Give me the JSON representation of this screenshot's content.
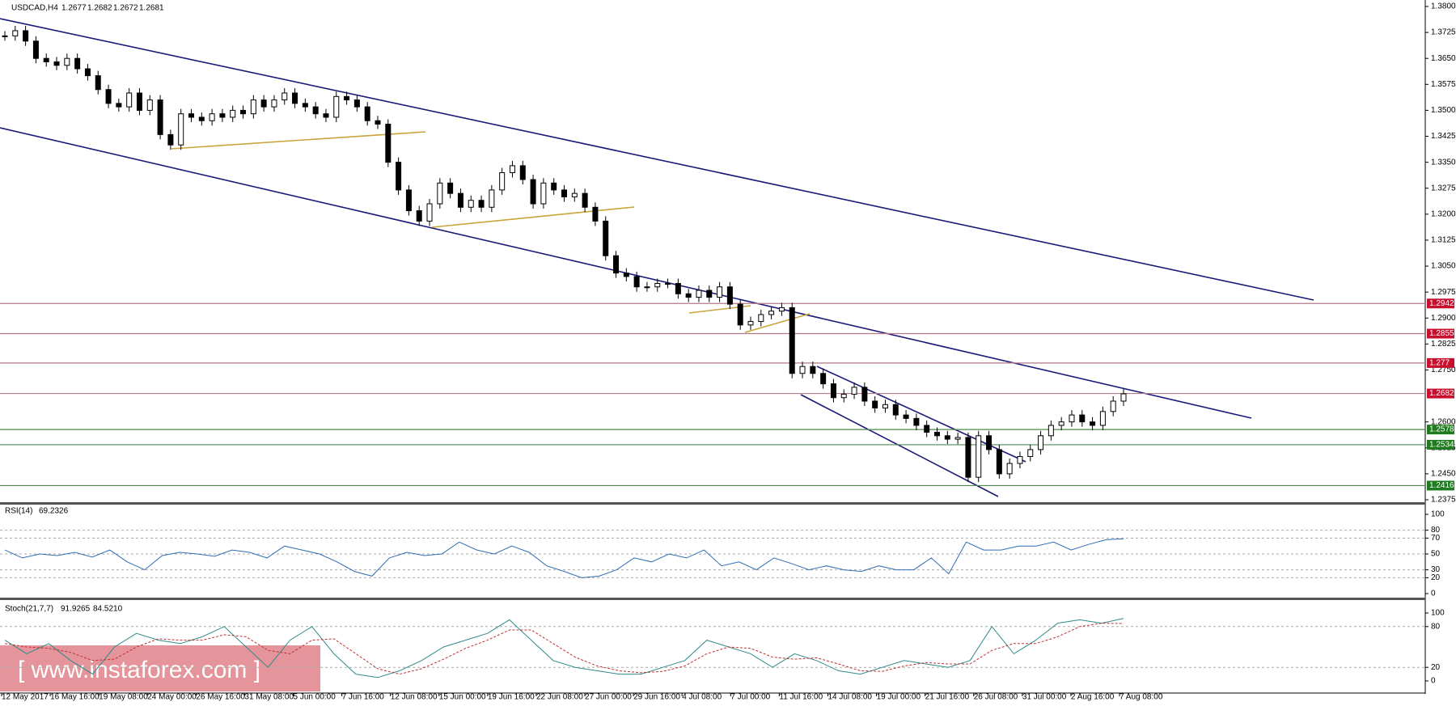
{
  "chart_data": [
    {
      "type": "candlestick",
      "symbol": "USDCAD,H4",
      "ohlc": [
        1.2677,
        1.2682,
        1.2672,
        1.2681
      ],
      "values": [
        1.3715,
        1.373,
        1.37,
        1.365,
        1.364,
        1.363,
        1.365,
        1.362,
        1.36,
        1.356,
        1.352,
        1.351,
        1.355,
        1.35,
        1.353,
        1.343,
        1.34,
        1.349,
        1.348,
        1.347,
        1.349,
        1.348,
        1.35,
        1.349,
        1.353,
        1.351,
        1.353,
        1.355,
        1.352,
        1.351,
        1.349,
        1.348,
        1.354,
        1.353,
        1.351,
        1.347,
        1.346,
        1.335,
        1.327,
        1.321,
        1.318,
        1.323,
        1.329,
        1.326,
        1.322,
        1.324,
        1.322,
        1.327,
        1.332,
        1.334,
        1.33,
        1.323,
        1.329,
        1.327,
        1.325,
        1.326,
        1.322,
        1.318,
        1.308,
        1.303,
        1.302,
        1.299,
        1.299,
        1.3,
        1.3,
        1.297,
        1.296,
        1.298,
        1.296,
        1.299,
        1.294,
        1.288,
        1.289,
        1.291,
        1.292,
        1.293,
        1.274,
        1.276,
        1.274,
        1.271,
        1.267,
        1.268,
        1.27,
        1.266,
        1.264,
        1.265,
        1.262,
        1.261,
        1.259,
        1.257,
        1.256,
        1.255,
        1.2555,
        1.244,
        1.256,
        1.252,
        1.245,
        1.248,
        1.25,
        1.252,
        1.256,
        1.259,
        1.26,
        1.262,
        1.26,
        1.259,
        1.263,
        1.266,
        1.2681
      ],
      "ylim": [
        1.2375,
        1.38
      ],
      "yticks": [
        {
          "value": 1.38,
          "label": "1.3800"
        },
        {
          "value": 1.3725,
          "label": "1.3725"
        },
        {
          "value": 1.365,
          "label": "1.3650"
        },
        {
          "value": 1.3575,
          "label": "1.3575"
        },
        {
          "value": 1.35,
          "label": "1.3500"
        },
        {
          "value": 1.3425,
          "label": "1.3425"
        },
        {
          "value": 1.335,
          "label": "1.3350"
        },
        {
          "value": 1.3275,
          "label": "1.3275"
        },
        {
          "value": 1.32,
          "label": "1.3200"
        },
        {
          "value": 1.3125,
          "label": "1.3125"
        },
        {
          "value": 1.305,
          "label": "1.3050"
        },
        {
          "value": 1.2975,
          "label": "1.2975"
        },
        {
          "value": 1.29,
          "label": "1.2900"
        },
        {
          "value": 1.2825,
          "label": "1.2825"
        },
        {
          "value": 1.275,
          "label": "1.2750"
        },
        {
          "value": 1.26,
          "label": "1.2600"
        },
        {
          "value": 1.2525,
          "label": "1.2525"
        },
        {
          "value": 1.245,
          "label": "1.2450"
        },
        {
          "value": 1.2375,
          "label": "1.2375"
        }
      ],
      "levels": [
        {
          "value": 1.2942,
          "color": "#c8102e",
          "line": "#b07a88"
        },
        {
          "value": 1.2855,
          "color": "#c8102e",
          "line": "#b07a88"
        },
        {
          "value": 1.277,
          "color": "#c8102e",
          "line": "#b07a88"
        },
        {
          "value": 1.2682,
          "color": "#c8102e",
          "line": "#b07a88"
        },
        {
          "value": 1.2578,
          "color": "#1e7b1e",
          "line": "#4f8a4f"
        },
        {
          "value": 1.2534,
          "color": "#1e7b1e",
          "line": "#4f8a4f"
        },
        {
          "value": 1.2416,
          "color": "#1e7b1e",
          "line": "#4f8a4f"
        }
      ],
      "xlabels": [
        "12 May 2017",
        "16 May 16:00",
        "19 May 08:00",
        "24 May 00:00",
        "26 May 16:00",
        "31 May 08:00",
        "5 Jun 00:00",
        "7 Jun 16:00",
        "12 Jun 08:00",
        "15 Jun 00:00",
        "19 Jun 16:00",
        "22 Jun 08:00",
        "27 Jun 00:00",
        "29 Jun 16:00",
        "4 Jul 08:00",
        "7 Jul 00:00",
        "11 Jul 16:00",
        "14 Jul 08:00",
        "19 Jul 00:00",
        "21 Jul 16:00",
        "26 Jul 08:00",
        "31 Jul 00:00",
        "2 Aug 16:00",
        "7 Aug 08:00"
      ],
      "watermark": "[ www.instaforex.com ]"
    },
    {
      "type": "line",
      "title": "RSI(14)",
      "last": 69.2326,
      "ylim": [
        0,
        100
      ],
      "yticks": [
        100,
        80,
        70,
        50,
        30,
        20,
        0
      ],
      "series": [
        {
          "color": "#2f6db5",
          "values": [
            55,
            45,
            50,
            48,
            52,
            46,
            55,
            40,
            30,
            48,
            52,
            50,
            47,
            55,
            52,
            45,
            60,
            55,
            50,
            40,
            28,
            22,
            45,
            52,
            48,
            50,
            65,
            55,
            50,
            60,
            52,
            35,
            28,
            20,
            22,
            30,
            45,
            40,
            50,
            45,
            55,
            35,
            40,
            30,
            45,
            38,
            30,
            35,
            30,
            28,
            35,
            30,
            30,
            45,
            25,
            65,
            55,
            55,
            60,
            60,
            65,
            55,
            62,
            68,
            69.2326
          ]
        }
      ]
    },
    {
      "type": "line",
      "title": "Stoch(21,7,7)",
      "last": [
        91.9265,
        {
          "value": 84.521,
          "label": "84.5210"
        }
      ],
      "ylim": [
        0,
        100
      ],
      "yticks": [
        100,
        80,
        20,
        0
      ],
      "series": [
        {
          "color": "#2f8a8a",
          "dash": false,
          "values": [
            60,
            40,
            55,
            30,
            10,
            50,
            70,
            60,
            55,
            65,
            80,
            50,
            20,
            60,
            80,
            40,
            10,
            5,
            15,
            30,
            50,
            60,
            70,
            90,
            60,
            30,
            20,
            15,
            10,
            10,
            20,
            30,
            60,
            50,
            40,
            20,
            40,
            30,
            15,
            10,
            20,
            30,
            25,
            20,
            30,
            80,
            40,
            60,
            85,
            90,
            85,
            91.9265
          ]
        },
        {
          "color": "#c03030",
          "dash": true,
          "values": [
            55,
            50,
            48,
            42,
            30,
            32,
            50,
            62,
            60,
            60,
            68,
            65,
            45,
            40,
            60,
            62,
            40,
            18,
            10,
            18,
            32,
            48,
            60,
            75,
            75,
            55,
            35,
            22,
            15,
            12,
            14,
            22,
            40,
            50,
            48,
            35,
            32,
            34,
            25,
            15,
            14,
            22,
            27,
            25,
            25,
            45,
            55,
            55,
            65,
            80,
            85,
            84.521
          ]
        }
      ]
    }
  ]
}
